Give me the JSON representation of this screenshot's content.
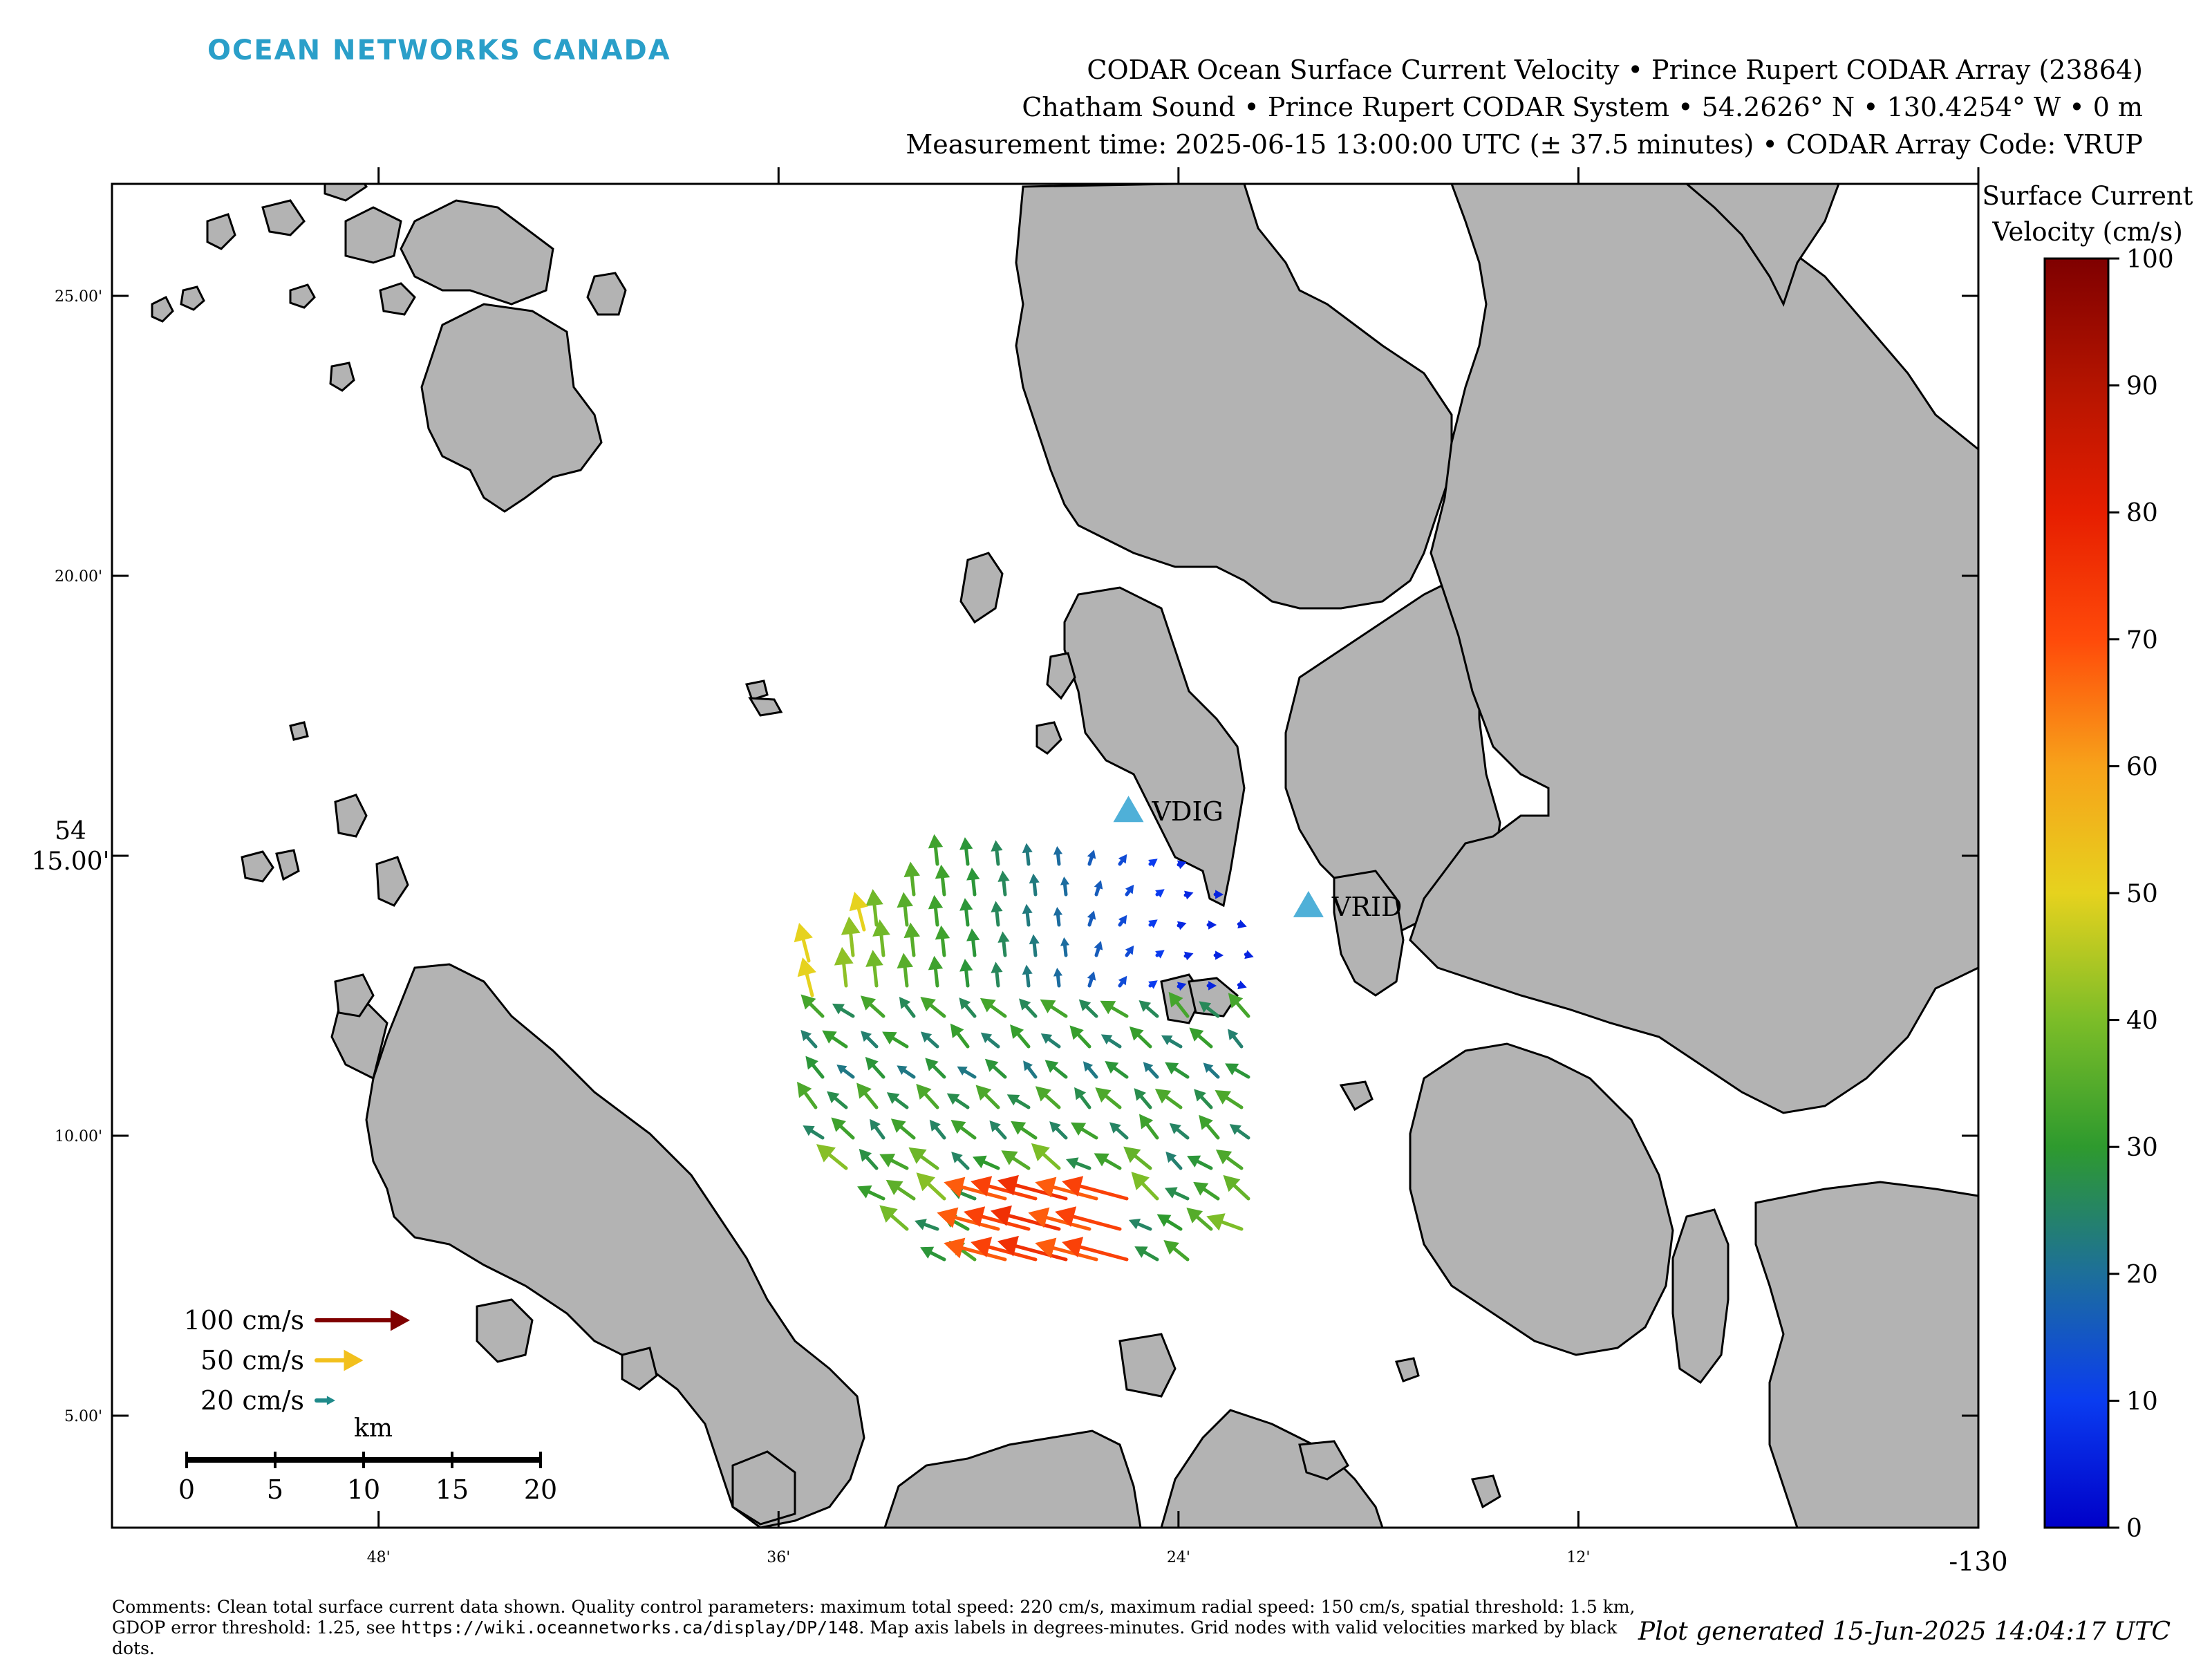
{
  "header": {
    "logo_text": "OCEAN NETWORKS CANADA",
    "title_line1": "CODAR Ocean Surface Current Velocity • Prince Rupert CODAR Array (23864)",
    "title_line2": "Chatham Sound • Prince Rupert CODAR System • 54.2626° N • 130.4254° W • 0 m",
    "title_line3": "Measurement time: 2025-06-15 13:00:00 UTC (± 37.5 minutes) • CODAR Array Code: VRUP"
  },
  "map": {
    "lat_ticks": [
      {
        "value": 25.0,
        "label": "25.00'"
      },
      {
        "value": 20.0,
        "label": "20.00'"
      },
      {
        "value": 15.0,
        "label_deg": "54",
        "label_min": "15.00'"
      },
      {
        "value": 10.0,
        "label": "10.00'"
      },
      {
        "value": 5.0,
        "label": "5.00'"
      }
    ],
    "lon_ticks": [
      {
        "value": 48,
        "label": "48'"
      },
      {
        "value": 36,
        "label": "36'"
      },
      {
        "value": 24,
        "label": "24'"
      },
      {
        "value": 12,
        "label": "12'"
      },
      {
        "value": 0,
        "label": "-130"
      }
    ],
    "stations": [
      {
        "name": "VDIG",
        "lon_min": 25.5,
        "lat_min": 15.8
      },
      {
        "name": "VRID",
        "lon_min": 20.1,
        "lat_min": 14.1
      }
    ],
    "land_color": "#b3b3b3"
  },
  "legend": {
    "items": [
      {
        "label": "100 cm/s",
        "speed": 100,
        "color": "#7f0000"
      },
      {
        "label": "50 cm/s",
        "speed": 50,
        "color": "#f2c01d"
      },
      {
        "label": "20 cm/s",
        "speed": 20,
        "color": "#1f8a8a"
      }
    ],
    "scale_title": "km",
    "scale_ticks": [
      "0",
      "5",
      "10",
      "15",
      "20"
    ]
  },
  "colorbar": {
    "title_line1": "Surface Current",
    "title_line2": "Velocity (cm/s)",
    "ticks": [
      "0",
      "10",
      "20",
      "30",
      "40",
      "50",
      "60",
      "70",
      "80",
      "90",
      "100"
    ],
    "min": 0,
    "max": 100
  },
  "footer": {
    "comments_part1": "Comments: Clean total surface current data shown. Quality control parameters: maximum total speed: 220 cm/s, maximum radial speed: 150 cm/s, spatial threshold: 1.5 km, GDOP error threshold: 1.25, see ",
    "comments_url": "https://wiki.oceannetworks.ca/display/DP/148",
    "comments_part2": ". Map axis labels in degrees-minutes. Grid nodes with valid velocities marked by black dots.",
    "generated": "Plot generated 15-Jun-2025 14:04:17 UTC"
  }
}
